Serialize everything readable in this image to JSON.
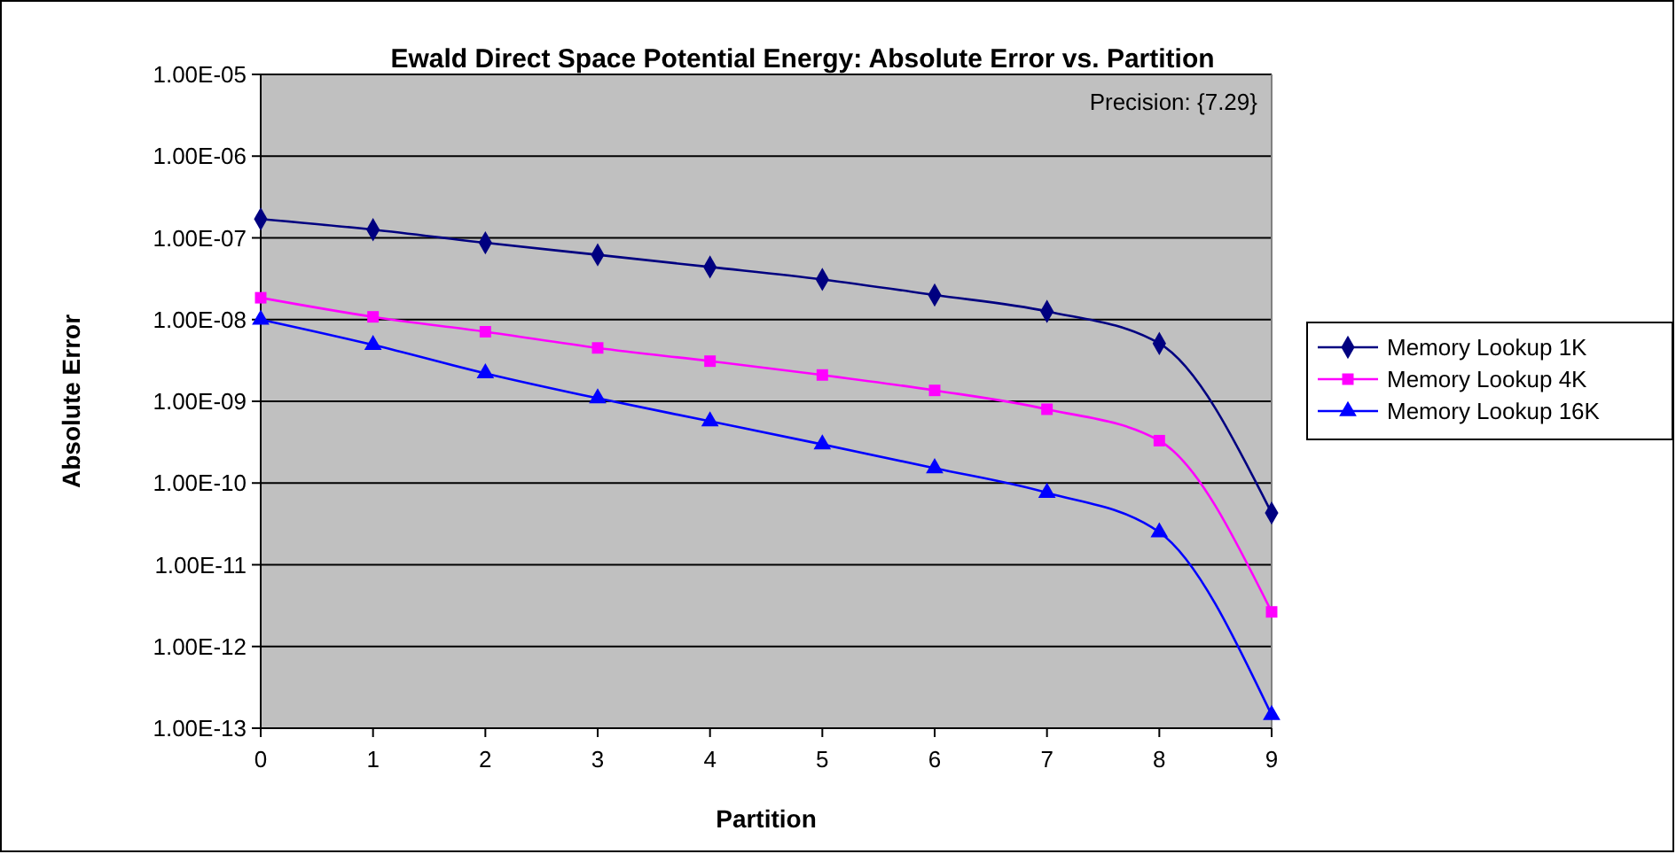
{
  "chart_data": {
    "type": "line",
    "title": "Ewald Direct Space Potential Energy: Absolute Error vs. Partition",
    "xlabel": "Partition",
    "ylabel": "Absolute Error",
    "annotations": [
      "Precision: {7.29}"
    ],
    "categories": [
      "0",
      "1",
      "2",
      "3",
      "4",
      "5",
      "6",
      "7",
      "8",
      "9"
    ],
    "series": [
      {
        "name": "Memory Lookup 1K",
        "color": "#000080",
        "marker": "diamond",
        "values": [
          1.7e-07,
          1.26e-07,
          8.7e-08,
          6.2e-08,
          4.4e-08,
          3.1e-08,
          2e-08,
          1.26e-08,
          5.1e-09,
          4.3e-11
        ]
      },
      {
        "name": "Memory Lookup 4K",
        "color": "#ff00ff",
        "marker": "square",
        "values": [
          1.85e-08,
          1.08e-08,
          7.1e-09,
          4.5e-09,
          3.1e-09,
          2.1e-09,
          1.36e-09,
          8e-10,
          3.3e-10,
          2.65e-12
        ]
      },
      {
        "name": "Memory Lookup 16K",
        "color": "#0000ff",
        "marker": "triangle",
        "values": [
          1e-08,
          4.9e-09,
          2.2e-09,
          1.09e-09,
          5.7e-10,
          2.97e-10,
          1.52e-10,
          7.6e-11,
          2.5e-11,
          1.45e-13
        ]
      }
    ],
    "log": true,
    "ylim": [
      1e-13,
      1e-05
    ],
    "yticks": [
      {
        "value": 1e-13,
        "label": "1.00E-13"
      },
      {
        "value": 1e-12,
        "label": "1.00E-12"
      },
      {
        "value": 1e-11,
        "label": "1.00E-11"
      },
      {
        "value": 1e-10,
        "label": "1.00E-10"
      },
      {
        "value": 1e-09,
        "label": "1.00E-09"
      },
      {
        "value": 1e-08,
        "label": "1.00E-08"
      },
      {
        "value": 1e-07,
        "label": "1.00E-07"
      },
      {
        "value": 1e-06,
        "label": "1.00E-06"
      },
      {
        "value": 1e-05,
        "label": "1.00E-05"
      }
    ],
    "grid": "y",
    "legend": "right"
  }
}
